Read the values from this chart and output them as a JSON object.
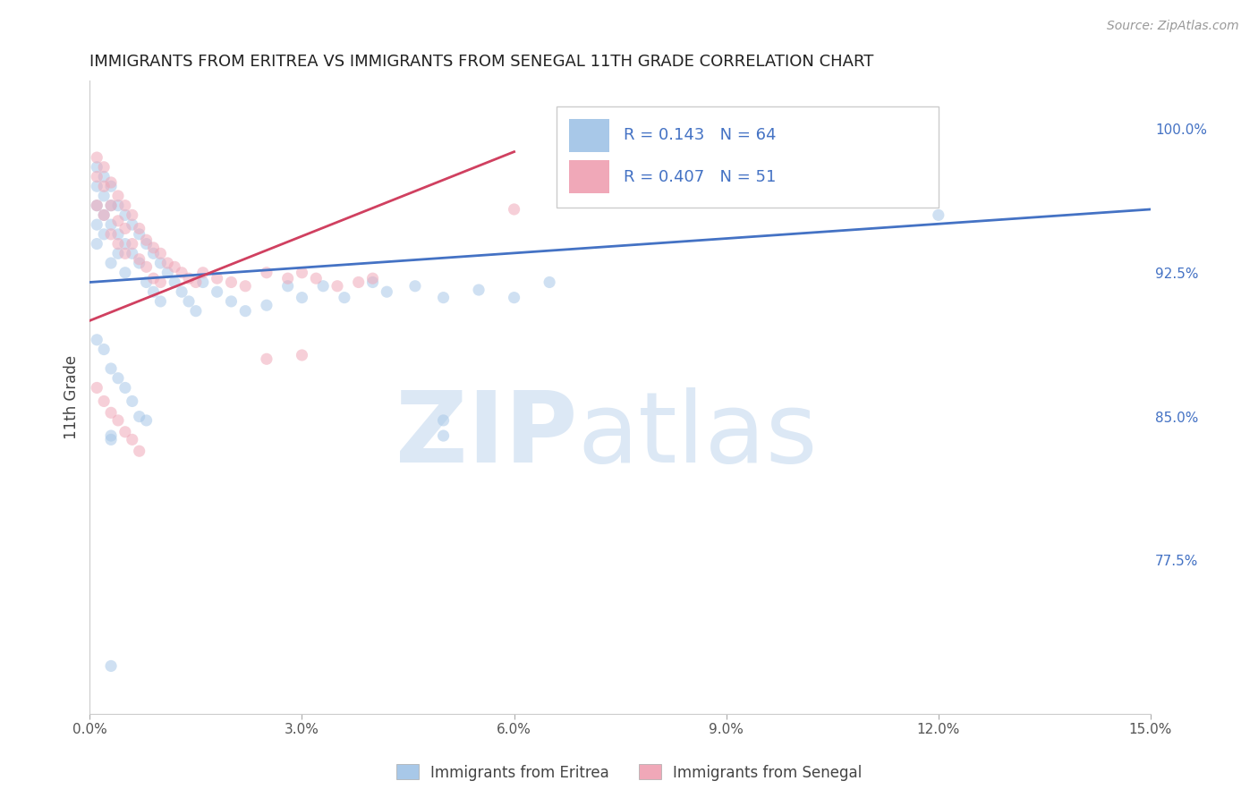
{
  "title": "IMMIGRANTS FROM ERITREA VS IMMIGRANTS FROM SENEGAL 11TH GRADE CORRELATION CHART",
  "source_text": "Source: ZipAtlas.com",
  "ylabel": "11th Grade",
  "xmin": 0.0,
  "xmax": 0.15,
  "ymin": 0.695,
  "ymax": 1.025,
  "yticks": [
    0.775,
    0.85,
    0.925,
    1.0
  ],
  "ytick_labels": [
    "77.5%",
    "85.0%",
    "92.5%",
    "100.0%"
  ],
  "xticks": [
    0.0,
    0.03,
    0.06,
    0.09,
    0.12,
    0.15
  ],
  "xtick_labels": [
    "0.0%",
    "3.0%",
    "6.0%",
    "9.0%",
    "12.0%",
    "15.0%"
  ],
  "legend_eritrea_label": "Immigrants from Eritrea",
  "legend_senegal_label": "Immigrants from Senegal",
  "r_eritrea": 0.143,
  "n_eritrea": 64,
  "r_senegal": 0.407,
  "n_senegal": 51,
  "color_eritrea": "#a8c8e8",
  "color_senegal": "#f0a8b8",
  "line_color_eritrea": "#4472c4",
  "line_color_senegal": "#d04060",
  "background_color": "#ffffff",
  "grid_color": "#cccccc",
  "watermark_color": "#dce8f5",
  "scatter_alpha": 0.55,
  "scatter_size": 90,
  "eritrea_x": [
    0.001,
    0.001,
    0.001,
    0.001,
    0.001,
    0.002,
    0.002,
    0.002,
    0.002,
    0.003,
    0.003,
    0.003,
    0.003,
    0.004,
    0.004,
    0.004,
    0.005,
    0.005,
    0.005,
    0.006,
    0.006,
    0.007,
    0.007,
    0.008,
    0.008,
    0.009,
    0.009,
    0.01,
    0.01,
    0.011,
    0.012,
    0.013,
    0.014,
    0.015,
    0.016,
    0.018,
    0.02,
    0.022,
    0.025,
    0.028,
    0.03,
    0.033,
    0.036,
    0.04,
    0.042,
    0.046,
    0.05,
    0.055,
    0.06,
    0.065,
    0.001,
    0.002,
    0.003,
    0.004,
    0.005,
    0.006,
    0.007,
    0.008,
    0.003,
    0.003,
    0.05,
    0.05,
    0.12,
    0.003
  ],
  "eritrea_y": [
    0.98,
    0.97,
    0.96,
    0.95,
    0.94,
    0.975,
    0.965,
    0.955,
    0.945,
    0.97,
    0.96,
    0.95,
    0.93,
    0.96,
    0.945,
    0.935,
    0.955,
    0.94,
    0.925,
    0.95,
    0.935,
    0.945,
    0.93,
    0.94,
    0.92,
    0.935,
    0.915,
    0.93,
    0.91,
    0.925,
    0.92,
    0.915,
    0.91,
    0.905,
    0.92,
    0.915,
    0.91,
    0.905,
    0.908,
    0.918,
    0.912,
    0.918,
    0.912,
    0.92,
    0.915,
    0.918,
    0.912,
    0.916,
    0.912,
    0.92,
    0.89,
    0.885,
    0.875,
    0.87,
    0.865,
    0.858,
    0.85,
    0.848,
    0.84,
    0.838,
    0.848,
    0.84,
    0.955,
    0.72
  ],
  "senegal_x": [
    0.001,
    0.001,
    0.001,
    0.002,
    0.002,
    0.002,
    0.003,
    0.003,
    0.003,
    0.004,
    0.004,
    0.004,
    0.005,
    0.005,
    0.005,
    0.006,
    0.006,
    0.007,
    0.007,
    0.008,
    0.008,
    0.009,
    0.009,
    0.01,
    0.01,
    0.011,
    0.012,
    0.013,
    0.014,
    0.015,
    0.016,
    0.018,
    0.02,
    0.022,
    0.025,
    0.028,
    0.03,
    0.032,
    0.035,
    0.038,
    0.04,
    0.001,
    0.002,
    0.003,
    0.004,
    0.005,
    0.006,
    0.007,
    0.025,
    0.03,
    0.06
  ],
  "senegal_y": [
    0.985,
    0.975,
    0.96,
    0.98,
    0.97,
    0.955,
    0.972,
    0.96,
    0.945,
    0.965,
    0.952,
    0.94,
    0.96,
    0.948,
    0.935,
    0.955,
    0.94,
    0.948,
    0.932,
    0.942,
    0.928,
    0.938,
    0.922,
    0.935,
    0.92,
    0.93,
    0.928,
    0.925,
    0.922,
    0.92,
    0.925,
    0.922,
    0.92,
    0.918,
    0.925,
    0.922,
    0.925,
    0.922,
    0.918,
    0.92,
    0.922,
    0.865,
    0.858,
    0.852,
    0.848,
    0.842,
    0.838,
    0.832,
    0.88,
    0.882,
    0.958
  ],
  "trendline_blue_x0": 0.0,
  "trendline_blue_y0": 0.92,
  "trendline_blue_x1": 0.15,
  "trendline_blue_y1": 0.958,
  "trendline_pink_x0": 0.0,
  "trendline_pink_y0": 0.9,
  "trendline_pink_x1": 0.06,
  "trendline_pink_y1": 0.988
}
